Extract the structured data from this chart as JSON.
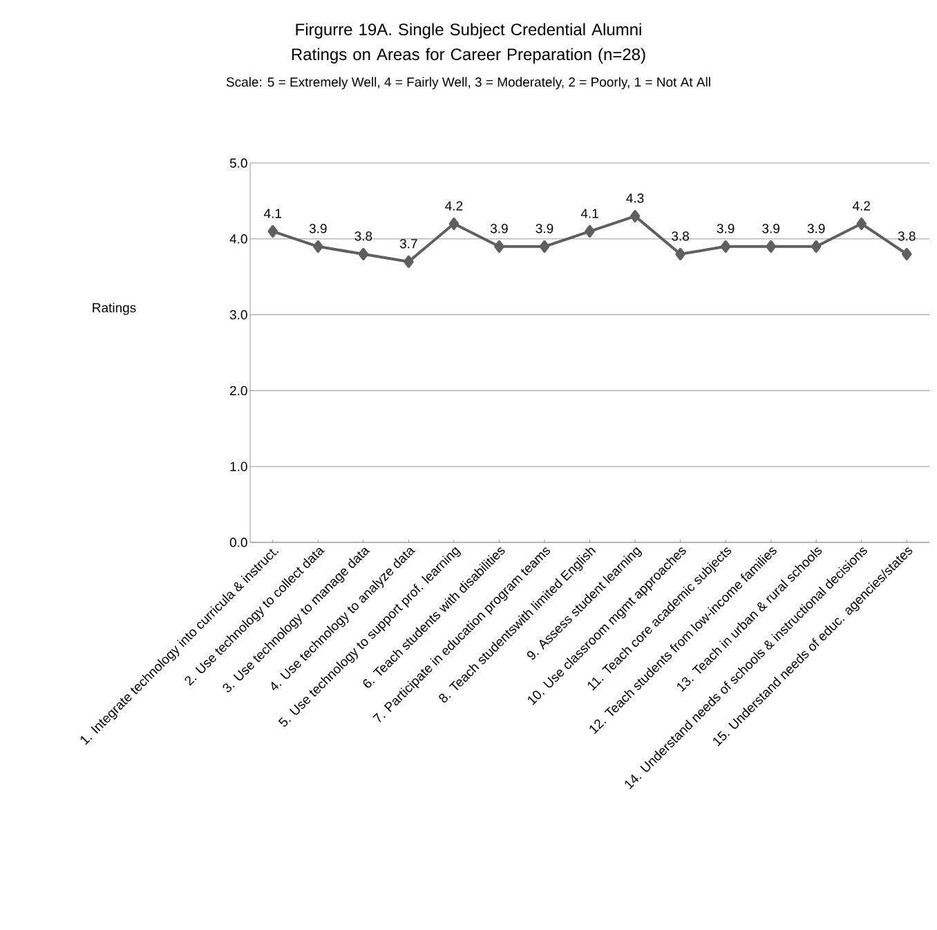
{
  "chart_data": {
    "type": "line",
    "title": "Firgurre 19A. Single Subject Credential Alumni Ratings on Areas for Career Preparation (n=28)",
    "subtitle": "Scale: 5 = Extremely Well, 4 = Fairly Well, 3 = Moderately, 2 = Poorly, 1 = Not At All",
    "ylabel": "Ratings",
    "categories": [
      "1. Integrate technology into curricula & instruct.",
      "2. Use technology to collect data",
      "3. Use technology to manage data",
      "4. Use technology to analyze data",
      "5. Use technology to support prof. learning",
      "6. Teach students with disabilities",
      "7. Participate in education program teams",
      "8. Teach studentswith limited English",
      "9. Assess student learning",
      "10. Use classroom mgmt approaches",
      "11. Teach core academic subjects",
      "12. Teach students from low-income families",
      "13. Teach in urban & rural schools",
      "14. Understand needs of schools & instructional decisions",
      "15. Understand needs of educ. agencies/states"
    ],
    "values": [
      4.1,
      3.9,
      3.8,
      3.7,
      4.2,
      3.9,
      3.9,
      4.1,
      4.3,
      3.8,
      3.9,
      3.9,
      3.9,
      4.2,
      3.8
    ],
    "color": "#5f5f5f",
    "ylim": [
      0,
      5
    ],
    "yticks": [
      {
        "value": 0,
        "label": "0.0"
      },
      {
        "value": 1,
        "label": "1.0"
      },
      {
        "value": 2,
        "label": "2.0"
      },
      {
        "value": 3,
        "label": "3.0"
      },
      {
        "value": 4,
        "label": "4.0"
      },
      {
        "value": 5,
        "label": "5.0"
      }
    ],
    "grid": "y",
    "marker": "diamond",
    "line_style": "solid",
    "data_labels": true
  }
}
